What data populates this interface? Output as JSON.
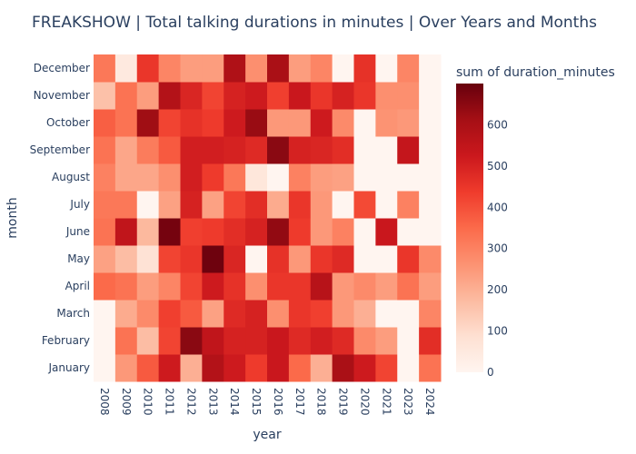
{
  "chart_data": {
    "type": "heatmap",
    "title": "FREAKSHOW | Total talking durations in minutes | Over Years and Months",
    "xlabel": "year",
    "ylabel": "month",
    "colorbar_title": "sum of duration_minutes",
    "x": [
      "2008",
      "2009",
      "2010",
      "2011",
      "2012",
      "2013",
      "2014",
      "2015",
      "2016",
      "2017",
      "2018",
      "2019",
      "2020",
      "2021",
      "2023",
      "2024"
    ],
    "y": [
      "January",
      "February",
      "March",
      "April",
      "May",
      "June",
      "July",
      "August",
      "September",
      "October",
      "November",
      "December"
    ],
    "z": [
      [
        0,
        250,
        380,
        520,
        200,
        580,
        520,
        440,
        530,
        350,
        200,
        600,
        520,
        420,
        0,
        330
      ],
      [
        0,
        330,
        170,
        420,
        650,
        550,
        500,
        500,
        530,
        480,
        510,
        480,
        280,
        240,
        0,
        470
      ],
      [
        0,
        210,
        280,
        430,
        380,
        230,
        480,
        500,
        270,
        450,
        430,
        250,
        200,
        0,
        0,
        290
      ],
      [
        350,
        330,
        240,
        290,
        420,
        520,
        460,
        270,
        450,
        450,
        570,
        250,
        280,
        240,
        330,
        240
      ],
      [
        230,
        170,
        80,
        420,
        450,
        690,
        490,
        0,
        460,
        250,
        450,
        480,
        0,
        0,
        450,
        280
      ],
      [
        330,
        550,
        180,
        680,
        430,
        440,
        470,
        500,
        640,
        440,
        250,
        300,
        0,
        530,
        0,
        0
      ],
      [
        320,
        320,
        0,
        230,
        500,
        230,
        420,
        470,
        210,
        450,
        250,
        0,
        410,
        0,
        300,
        0
      ],
      [
        300,
        220,
        220,
        270,
        510,
        440,
        320,
        60,
        0,
        300,
        240,
        230,
        0,
        0,
        0,
        0
      ],
      [
        330,
        220,
        310,
        380,
        510,
        510,
        500,
        480,
        650,
        500,
        490,
        470,
        0,
        0,
        540,
        0
      ],
      [
        370,
        330,
        620,
        420,
        460,
        440,
        520,
        630,
        250,
        250,
        520,
        280,
        0,
        260,
        250,
        0
      ],
      [
        160,
        330,
        240,
        580,
        490,
        420,
        500,
        520,
        430,
        530,
        450,
        500,
        450,
        270,
        270,
        0
      ],
      [
        320,
        50,
        450,
        290,
        240,
        240,
        590,
        270,
        600,
        240,
        290,
        0,
        460,
        0,
        290,
        0
      ]
    ],
    "zmin": 0,
    "zmax": 700,
    "colorbar_ticks": [
      0,
      100,
      200,
      300,
      400,
      500,
      600
    ],
    "colorscale": [
      "#fff5f0",
      "#fee0d2",
      "#fcbba1",
      "#fc9272",
      "#fb6a4a",
      "#ef3b2c",
      "#cb181d",
      "#a50f15",
      "#67000d"
    ]
  }
}
